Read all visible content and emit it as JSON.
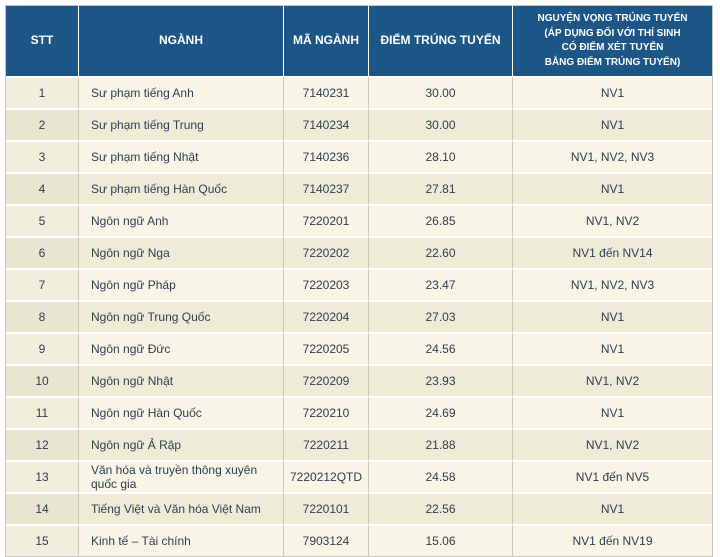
{
  "colors": {
    "header_bg": "#1b5687",
    "header_text": "#ffffff",
    "row_odd": "#efebd9",
    "row_even": "#f8f5e6",
    "grid": "#c8c8ba",
    "text": "#2c3e50"
  },
  "table": {
    "columns": [
      {
        "key": "stt",
        "label": "STT"
      },
      {
        "key": "nganh",
        "label": "NGÀNH"
      },
      {
        "key": "ma",
        "label": "MÃ NGÀNH"
      },
      {
        "key": "diem",
        "label": "ĐIỂM TRÚNG TUYỂN"
      },
      {
        "key": "nv",
        "label": "NGUYỆN VỌNG TRÚNG TUYỂN\n(ÁP DỤNG ĐỐI VỚI THÍ SINH\nCÓ ĐIỂM XÉT TUYỂN\nBẰNG ĐIỂM TRÚNG TUYỂN)"
      }
    ],
    "rows": [
      {
        "stt": "1",
        "nganh": "Sư phạm tiếng Anh",
        "ma": "7140231",
        "diem": "30.00",
        "nv": "NV1"
      },
      {
        "stt": "2",
        "nganh": "Sư phạm tiếng Trung",
        "ma": "7140234",
        "diem": "30.00",
        "nv": "NV1"
      },
      {
        "stt": "3",
        "nganh": "Sư phạm tiếng Nhật",
        "ma": "7140236",
        "diem": "28.10",
        "nv": "NV1, NV2, NV3"
      },
      {
        "stt": "4",
        "nganh": "Sư phạm tiếng Hàn Quốc",
        "ma": "7140237",
        "diem": "27.81",
        "nv": "NV1"
      },
      {
        "stt": "5",
        "nganh": "Ngôn ngữ Anh",
        "ma": "7220201",
        "diem": "26.85",
        "nv": "NV1, NV2"
      },
      {
        "stt": "6",
        "nganh": "Ngôn ngữ Nga",
        "ma": "7220202",
        "diem": "22.60",
        "nv": "NV1 đến NV14"
      },
      {
        "stt": "7",
        "nganh": "Ngôn ngữ Pháp",
        "ma": "7220203",
        "diem": "23.47",
        "nv": "NV1, NV2, NV3"
      },
      {
        "stt": "8",
        "nganh": "Ngôn ngữ Trung Quốc",
        "ma": "7220204",
        "diem": "27.03",
        "nv": "NV1"
      },
      {
        "stt": "9",
        "nganh": "Ngôn ngữ Đức",
        "ma": "7220205",
        "diem": "24.56",
        "nv": "NV1"
      },
      {
        "stt": "10",
        "nganh": "Ngôn ngữ Nhật",
        "ma": "7220209",
        "diem": "23.93",
        "nv": "NV1, NV2"
      },
      {
        "stt": "11",
        "nganh": "Ngôn ngữ Hàn Quốc",
        "ma": "7220210",
        "diem": "24.69",
        "nv": "NV1"
      },
      {
        "stt": "12",
        "nganh": "Ngôn ngữ Ả Rập",
        "ma": "7220211",
        "diem": "21.88",
        "nv": "NV1, NV2"
      },
      {
        "stt": "13",
        "nganh": "Văn hóa và truyền thông xuyên quốc gia",
        "ma": "7220212QTD",
        "diem": "24.58",
        "nv": "NV1 đến NV5"
      },
      {
        "stt": "14",
        "nganh": "Tiếng Việt và Văn hóa Việt Nam",
        "ma": "7220101",
        "diem": "22.56",
        "nv": "NV1"
      },
      {
        "stt": "15",
        "nganh": "Kinh tế – Tài chính",
        "ma": "7903124",
        "diem": "15.06",
        "nv": "NV1 đến NV19"
      }
    ]
  }
}
